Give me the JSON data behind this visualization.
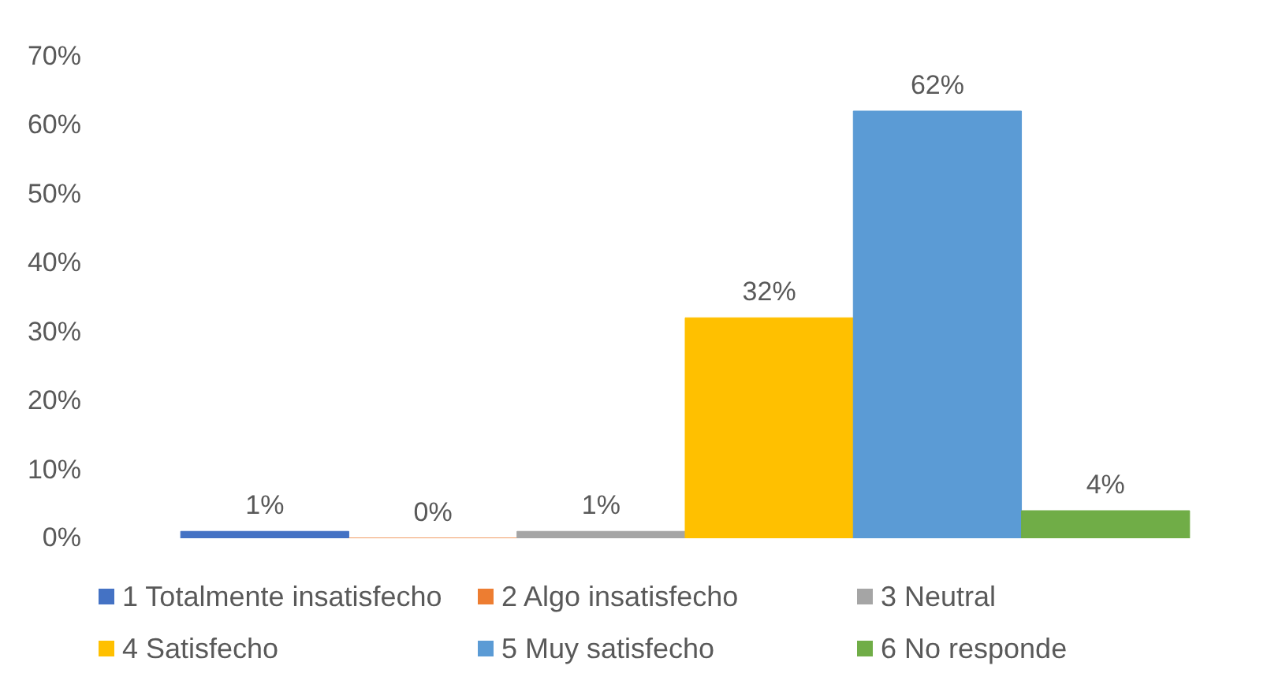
{
  "chart_data": {
    "type": "bar",
    "categories": [
      null
    ],
    "series": [
      {
        "name": "1 Totalmente insatisfecho",
        "color": "#4472c4",
        "values": [
          1
        ],
        "value_labels": [
          "1%"
        ]
      },
      {
        "name": "2 Algo insatisfecho",
        "color": "#ed7d31",
        "values": [
          0
        ],
        "value_labels": [
          "0%"
        ]
      },
      {
        "name": "3 Neutral",
        "color": "#a5a5a5",
        "values": [
          1
        ],
        "value_labels": [
          "1%"
        ]
      },
      {
        "name": "4 Satisfecho",
        "color": "#ffc000",
        "values": [
          32
        ],
        "value_labels": [
          "32%"
        ]
      },
      {
        "name": "5 Muy satisfecho",
        "color": "#5b9bd5",
        "values": [
          62
        ],
        "value_labels": [
          "62%"
        ]
      },
      {
        "name": "6 No responde",
        "color": "#70ad47",
        "values": [
          4
        ],
        "value_labels": [
          "4%"
        ]
      }
    ],
    "ylim": [
      0,
      70
    ],
    "yticks": [
      {
        "value": 0,
        "label": "0%"
      },
      {
        "value": 10,
        "label": "10%"
      },
      {
        "value": 20,
        "label": "20%"
      },
      {
        "value": 30,
        "label": "30%"
      },
      {
        "value": 40,
        "label": "40%"
      },
      {
        "value": 50,
        "label": "50%"
      },
      {
        "value": 60,
        "label": "60%"
      },
      {
        "value": 70,
        "label": "70%"
      }
    ],
    "grid": false,
    "legend": "bottom",
    "tick_labels": "y"
  }
}
